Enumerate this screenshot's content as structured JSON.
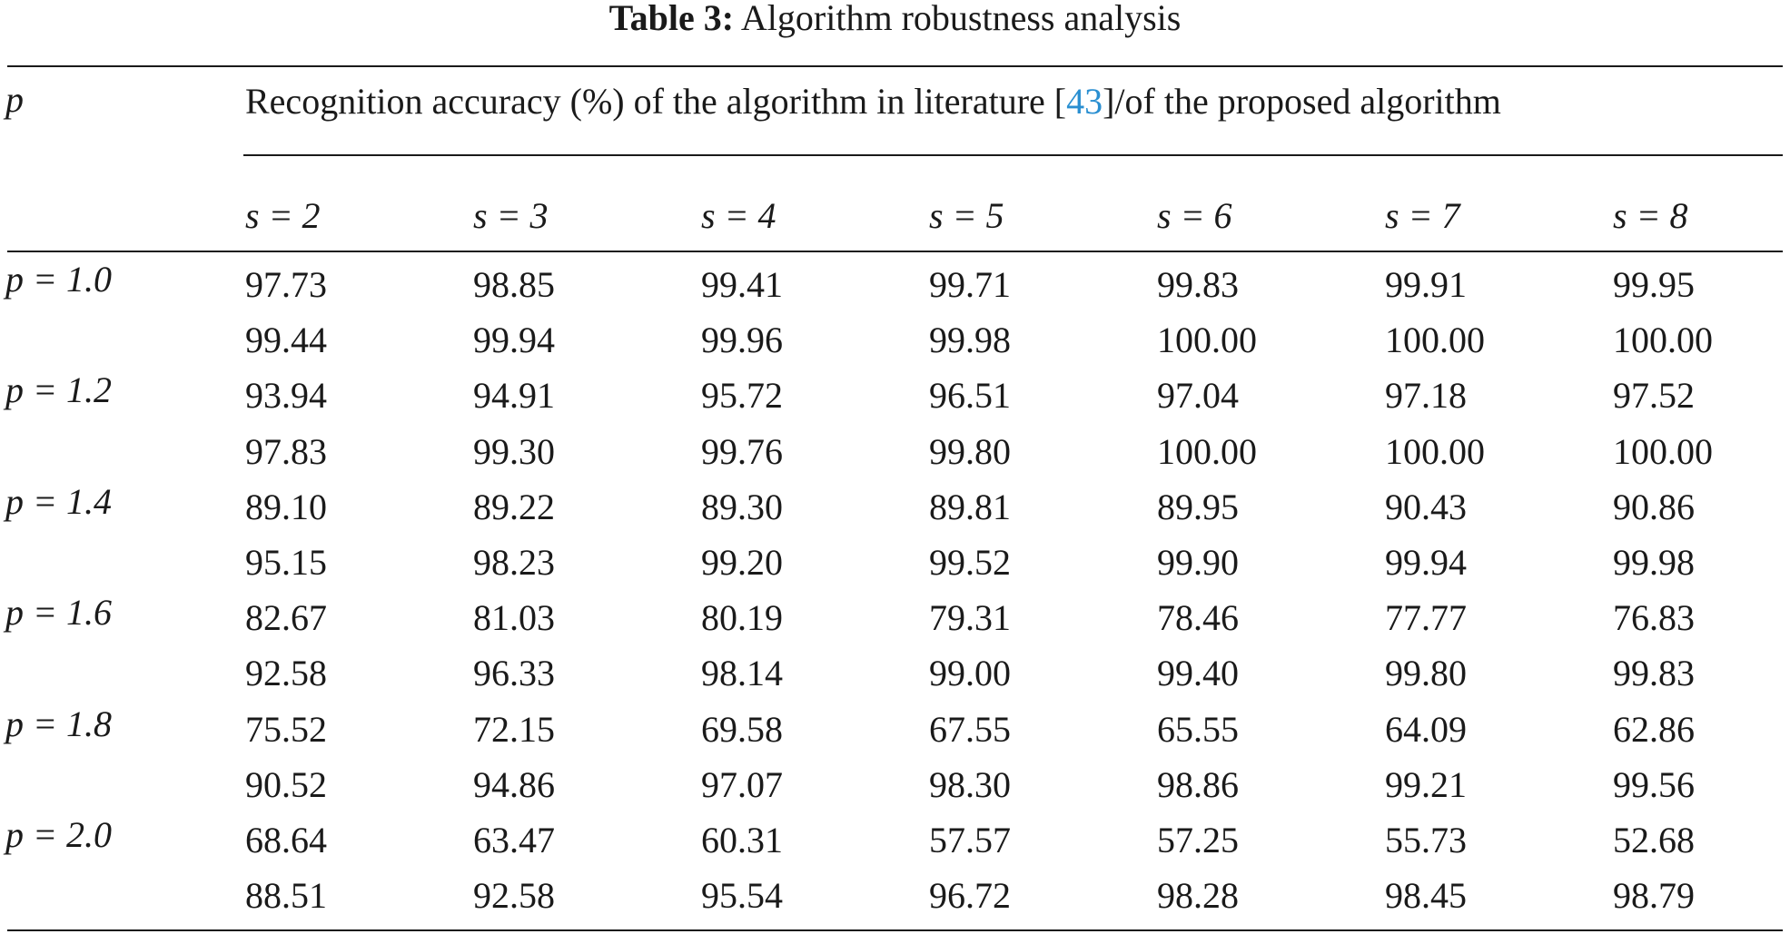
{
  "caption": {
    "label": "Table 3:",
    "title": "Algorithm robustness analysis"
  },
  "header": {
    "p_label": "p",
    "span_text_before": "Recognition accuracy (%) of the algorithm in literature [",
    "span_ref": "43",
    "span_text_after": "]/of the proposed algorithm",
    "columns": [
      "s = 2",
      "s = 3",
      "s = 4",
      "s = 5",
      "s = 6",
      "s = 7",
      "s = 8"
    ]
  },
  "rows": [
    {
      "p": "p = 1.0",
      "literature": [
        "97.73",
        "98.85",
        "99.41",
        "99.71",
        "99.83",
        "99.91",
        "99.95"
      ],
      "proposed": [
        "99.44",
        "99.94",
        "99.96",
        "99.98",
        "100.00",
        "100.00",
        "100.00"
      ]
    },
    {
      "p": "p = 1.2",
      "literature": [
        "93.94",
        "94.91",
        "95.72",
        "96.51",
        "97.04",
        "97.18",
        "97.52"
      ],
      "proposed": [
        "97.83",
        "99.30",
        "99.76",
        "99.80",
        "100.00",
        "100.00",
        "100.00"
      ]
    },
    {
      "p": "p = 1.4",
      "literature": [
        "89.10",
        "89.22",
        "89.30",
        "89.81",
        "89.95",
        "90.43",
        "90.86"
      ],
      "proposed": [
        "95.15",
        "98.23",
        "99.20",
        "99.52",
        "99.90",
        "99.94",
        "99.98"
      ]
    },
    {
      "p": "p = 1.6",
      "literature": [
        "82.67",
        "81.03",
        "80.19",
        "79.31",
        "78.46",
        "77.77",
        "76.83"
      ],
      "proposed": [
        "92.58",
        "96.33",
        "98.14",
        "99.00",
        "99.40",
        "99.80",
        "99.83"
      ]
    },
    {
      "p": "p = 1.8",
      "literature": [
        "75.52",
        "72.15",
        "69.58",
        "67.55",
        "65.55",
        "64.09",
        "62.86"
      ],
      "proposed": [
        "90.52",
        "94.86",
        "97.07",
        "98.30",
        "98.86",
        "99.21",
        "99.56"
      ]
    },
    {
      "p": "p = 2.0",
      "literature": [
        "68.64",
        "63.47",
        "60.31",
        "57.57",
        "57.25",
        "55.73",
        "52.68"
      ],
      "proposed": [
        "88.51",
        "92.58",
        "95.54",
        "96.72",
        "98.28",
        "98.45",
        "98.79"
      ]
    }
  ]
}
